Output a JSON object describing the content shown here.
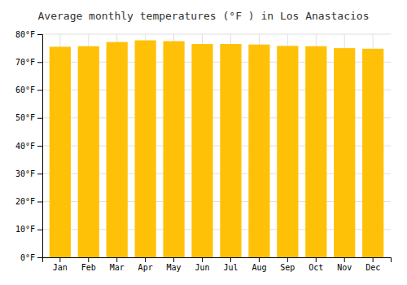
{
  "chart_data": {
    "type": "bar",
    "title": "Average monthly temperatures (°F ) in Los Anastacios",
    "categories": [
      "Jan",
      "Feb",
      "Mar",
      "Apr",
      "May",
      "Jun",
      "Jul",
      "Aug",
      "Sep",
      "Oct",
      "Nov",
      "Dec"
    ],
    "values": [
      75.5,
      75.7,
      77.2,
      77.8,
      77.5,
      76.5,
      76.5,
      76.3,
      75.8,
      75.7,
      75.0,
      74.8
    ],
    "color": "#FFC107",
    "ylim": [
      0,
      80
    ],
    "yticks": [
      {
        "value": 0,
        "label": "0°F"
      },
      {
        "value": 10,
        "label": "10°F"
      },
      {
        "value": 20,
        "label": "20°F"
      },
      {
        "value": 30,
        "label": "30°F"
      },
      {
        "value": 40,
        "label": "40°F"
      },
      {
        "value": 50,
        "label": "50°F"
      },
      {
        "value": 60,
        "label": "60°F"
      },
      {
        "value": 70,
        "label": "70°F"
      },
      {
        "value": 80,
        "label": "80°F"
      }
    ],
    "grid": true
  }
}
